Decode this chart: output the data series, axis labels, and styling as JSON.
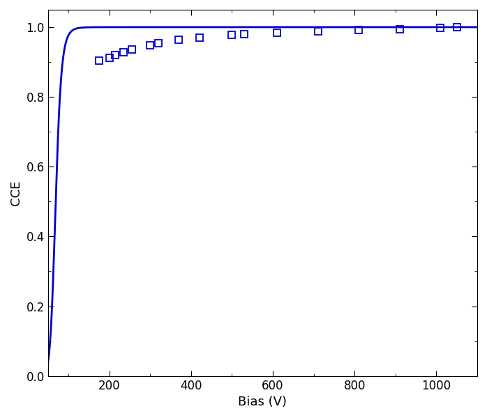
{
  "xlabel": "Bias (V)",
  "ylabel": "CCE",
  "xlim": [
    50,
    1100
  ],
  "ylim": [
    0.0,
    1.05
  ],
  "xticks": [
    200,
    400,
    600,
    800,
    1000
  ],
  "yticks": [
    0.0,
    0.2,
    0.4,
    0.6,
    0.8,
    1.0
  ],
  "curve_color": "#0000CC",
  "marker_color": "#0000CC",
  "hecht_Vr": 18.0,
  "scatter_x": [
    175,
    200,
    215,
    235,
    255,
    300,
    320,
    370,
    420,
    500,
    530,
    610,
    710,
    810,
    910,
    1010,
    1050
  ],
  "scatter_y": [
    0.905,
    0.912,
    0.92,
    0.928,
    0.935,
    0.948,
    0.953,
    0.963,
    0.97,
    0.977,
    0.979,
    0.983,
    0.988,
    0.992,
    0.994,
    0.998,
    0.999
  ],
  "line_width": 2.0,
  "marker_size": 7,
  "fig_bg": "#ffffff",
  "axes_bg": "#ffffff",
  "tick_label_fontsize": 12,
  "axis_label_fontsize": 13,
  "curve_start_V": 48,
  "curve_end_V": 1100,
  "hecht_alpha": 1.8,
  "hecht_C": 7.5
}
